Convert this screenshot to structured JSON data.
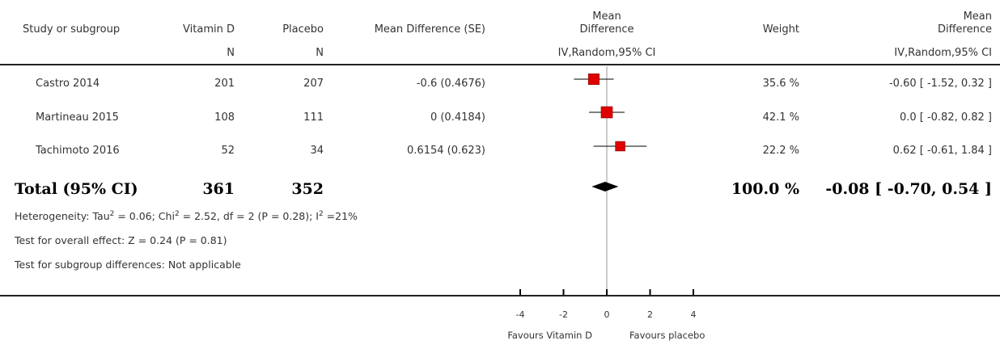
{
  "headers": {
    "study": "Study or subgroup",
    "vitd": "Vitamin D",
    "placebo": "Placebo",
    "md_se": "Mean Difference (SE)",
    "md_plot_line1": "Mean",
    "md_plot_line2": "Difference",
    "weight": "Weight",
    "md_col_line1": "Mean",
    "md_col_line2": "Difference",
    "vitd_sub": "N",
    "placebo_sub": "N",
    "plot_sub": "IV,Random,95% CI",
    "md_col_sub": "IV,Random,95% CI"
  },
  "studies": [
    {
      "name": "Castro 2014",
      "vitd_n": "201",
      "placebo_n": "207",
      "md_se": "-0.6 (0.4676)",
      "weight": "35.6 %",
      "ci_text": "-0.60 [ -1.52, 0.32 ]"
    },
    {
      "name": "Martineau 2015",
      "vitd_n": "108",
      "placebo_n": "111",
      "md_se": "0 (0.4184)",
      "weight": "42.1 %",
      "ci_text": "0.0 [ -0.82, 0.82 ]"
    },
    {
      "name": "Tachimoto 2016",
      "vitd_n": "52",
      "placebo_n": "34",
      "md_se": "0.6154 (0.623)",
      "weight": "22.2 %",
      "ci_text": "0.62 [ -0.61, 1.84 ]"
    }
  ],
  "total": {
    "label": "Total (95% CI)",
    "vitd_n": "361",
    "placebo_n": "352",
    "weight": "100.0 %",
    "ci_text": "-0.08 [ -0.70, 0.54 ]"
  },
  "notes": {
    "heterogeneity_a": "Heterogeneity: Tau",
    "heterogeneity_sup1": "2",
    "heterogeneity_b": " = 0.06; Chi",
    "heterogeneity_sup2": "2",
    "heterogeneity_c": " = 2.52, df = 2 (P = 0.28); I",
    "heterogeneity_sup3": "2",
    "heterogeneity_d": " =21%",
    "overall": "Test for overall effect: Z = 0.24 (P = 0.81)",
    "subgroup": "Test for subgroup differences: Not applicable"
  },
  "axis": {
    "favours_left": "Favours Vitamin D",
    "favours_right": "Favours placebo"
  },
  "colors": {
    "marker": "#e00000",
    "line": "#000000",
    "ref_line": "#999999"
  },
  "chart_data": {
    "type": "forest",
    "xlim": [
      -4,
      4
    ],
    "ticks": [
      -4,
      -2,
      0,
      2,
      4
    ],
    "tick_labels": [
      "-4",
      "-2",
      "0",
      "2",
      "4"
    ],
    "studies": [
      {
        "name": "Castro 2014",
        "estimate": -0.6,
        "lower": -1.52,
        "upper": 0.32,
        "weight": 35.6
      },
      {
        "name": "Martineau 2015",
        "estimate": 0.0,
        "lower": -0.82,
        "upper": 0.82,
        "weight": 42.1
      },
      {
        "name": "Tachimoto 2016",
        "estimate": 0.62,
        "lower": -0.61,
        "upper": 1.84,
        "weight": 22.2
      }
    ],
    "pooled": {
      "estimate": -0.08,
      "lower": -0.7,
      "upper": 0.54
    }
  }
}
